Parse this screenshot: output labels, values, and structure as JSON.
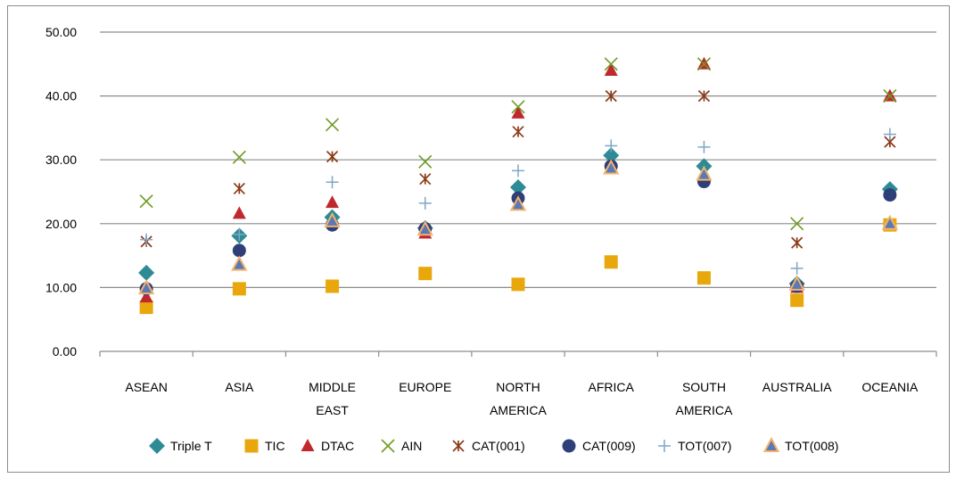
{
  "chart_data": {
    "type": "scatter",
    "categories": [
      "ASEAN",
      "ASIA",
      "MIDDLE EAST",
      "EUROPE",
      "NORTH AMERICA",
      "AFRICA",
      "SOUTH AMERICA",
      "AUSTRALIA",
      "OCEANIA"
    ],
    "category_lines": [
      [
        "ASEAN"
      ],
      [
        "ASIA"
      ],
      [
        "MIDDLE",
        "EAST"
      ],
      [
        "EUROPE"
      ],
      [
        "NORTH",
        "AMERICA"
      ],
      [
        "AFRICA"
      ],
      [
        "SOUTH",
        "AMERICA"
      ],
      [
        "AUSTRALIA"
      ],
      [
        "OCEANIA"
      ]
    ],
    "ylim": [
      0,
      50
    ],
    "yticks": [
      0,
      10,
      20,
      30,
      40,
      50
    ],
    "ytick_labels": [
      "0.00",
      "10.00",
      "20.00",
      "30.00",
      "40.00",
      "50.00"
    ],
    "grid": true,
    "legend_position": "bottom",
    "title": "",
    "xlabel": "",
    "ylabel": "",
    "series": [
      {
        "name": "Triple T",
        "marker": "diamond",
        "color": "#2E8B96",
        "values": [
          12.3,
          18.1,
          21.0,
          19.3,
          25.7,
          30.7,
          29.0,
          10.6,
          25.4
        ]
      },
      {
        "name": "TIC",
        "marker": "square",
        "color": "#E8A80C",
        "values": [
          6.9,
          9.8,
          10.2,
          12.2,
          10.5,
          14.0,
          11.5,
          8.0,
          19.8
        ]
      },
      {
        "name": "DTAC",
        "marker": "triangle",
        "color": "#C0282D",
        "values": [
          8.5,
          21.6,
          23.3,
          18.5,
          37.3,
          44.0,
          45.0,
          10.0,
          40.0
        ]
      },
      {
        "name": "AIN",
        "marker": "x",
        "color": "#6E9A24",
        "values": [
          23.5,
          30.4,
          35.5,
          29.7,
          38.3,
          45.0,
          45.0,
          20.0,
          40.0
        ]
      },
      {
        "name": "CAT(001)",
        "marker": "star",
        "color": "#8B3A17",
        "values": [
          17.2,
          25.5,
          30.5,
          27.0,
          34.4,
          40.0,
          40.0,
          17.0,
          32.8
        ]
      },
      {
        "name": "CAT(009)",
        "marker": "circle",
        "color": "#2F3F78",
        "values": [
          9.8,
          15.8,
          19.8,
          19.2,
          24.0,
          29.0,
          26.6,
          10.2,
          24.5
        ]
      },
      {
        "name": "TOT(007)",
        "marker": "plus",
        "color": "#7FA6C6",
        "values": [
          17.5,
          18.3,
          26.5,
          23.2,
          28.3,
          32.2,
          32.0,
          13.0,
          34.0
        ]
      },
      {
        "name": "TOT(008)",
        "marker": "triangle-outline",
        "color": "#5B79B6",
        "stroke": "#F3B26A",
        "values": [
          9.9,
          13.6,
          20.4,
          19.1,
          23.0,
          28.7,
          27.7,
          10.5,
          20.0
        ]
      }
    ]
  }
}
